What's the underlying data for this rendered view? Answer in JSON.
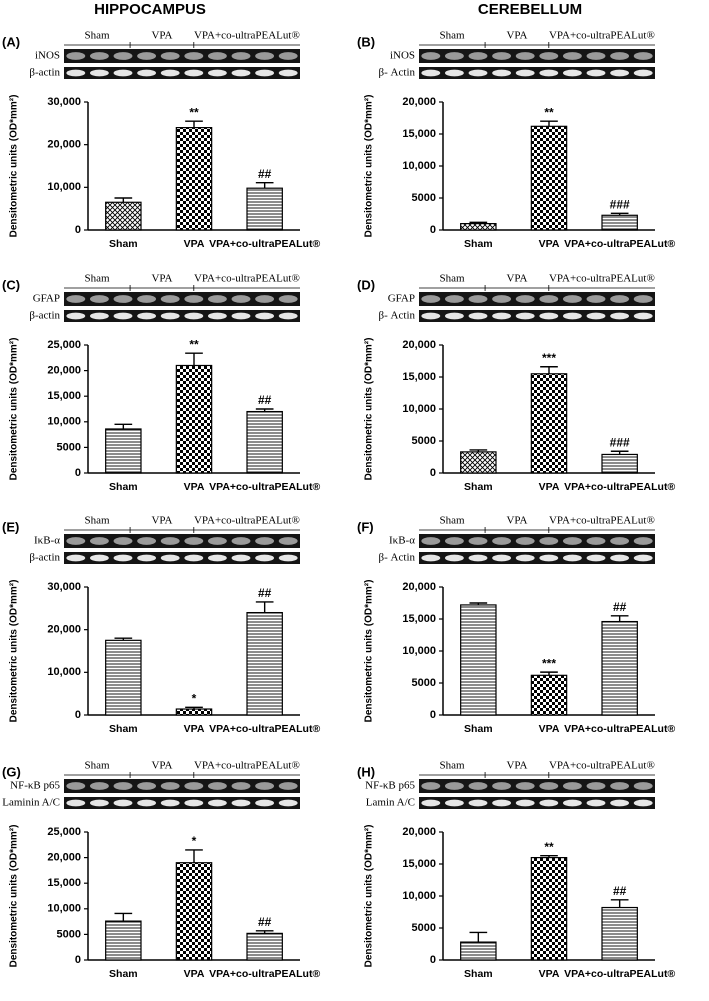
{
  "columns": [
    "HIPPOCAMPUS",
    "CEREBELLUM"
  ],
  "chart_data": [
    {
      "type": "bar",
      "panel": "(A)",
      "blot": {
        "groups": [
          "Sham",
          "VPA",
          "VPA+co-ultraPEALut®"
        ],
        "rows": [
          "iNOS",
          "β-actin"
        ]
      },
      "ylabel": "Densitometric units (OD*mm²)",
      "categories": [
        "Sham",
        "VPA",
        "VPA+co-ultraPEALut®"
      ],
      "values": [
        6500,
        24000,
        9800
      ],
      "errors": [
        1000,
        1500,
        1300
      ],
      "annotations": [
        null,
        "**",
        "##"
      ],
      "patterns": [
        "crosshatch",
        "checker",
        "hlines"
      ],
      "ylim": [
        0,
        30000
      ],
      "yticks": [
        0,
        {
          "value": 10000,
          "label": "10,000"
        },
        {
          "value": 20000,
          "label": "20,000"
        },
        {
          "value": 30000,
          "label": "30,000"
        }
      ]
    },
    {
      "type": "bar",
      "panel": "(B)",
      "blot": {
        "groups": [
          "Sham",
          "VPA",
          "VPA+co-ultraPEALut®"
        ],
        "rows": [
          "iNOS",
          "β- Actin"
        ]
      },
      "ylabel": "Densitometric units (OD*mm²)",
      "categories": [
        "Sham",
        "VPA",
        "VPA+co-ultraPEALut®"
      ],
      "values": [
        1000,
        16200,
        2300
      ],
      "errors": [
        200,
        800,
        300
      ],
      "annotations": [
        null,
        "**",
        "###"
      ],
      "patterns": [
        "crosshatch",
        "checker",
        "hlines"
      ],
      "ylim": [
        0,
        20000
      ],
      "yticks": [
        0,
        5000,
        {
          "value": 10000,
          "label": "10,000"
        },
        {
          "value": 15000,
          "label": "15,000"
        },
        {
          "value": 20000,
          "label": "20,000"
        }
      ]
    },
    {
      "type": "bar",
      "panel": "(C)",
      "blot": {
        "groups": [
          "Sham",
          "VPA",
          "VPA+co-ultraPEALut®"
        ],
        "rows": [
          "GFAP",
          "β-actin"
        ]
      },
      "ylabel": "Densitometric units (OD*mm²)",
      "categories": [
        "Sham",
        "VPA",
        "VPA+co-ultraPEALut®"
      ],
      "values": [
        8600,
        21000,
        12000
      ],
      "errors": [
        900,
        2400,
        500
      ],
      "annotations": [
        null,
        "**",
        "##"
      ],
      "patterns": [
        "hlines",
        "checker",
        "hlines"
      ],
      "ylim": [
        0,
        25000
      ],
      "yticks": [
        0,
        5000,
        {
          "value": 10000,
          "label": "10,000"
        },
        {
          "value": 15000,
          "label": "15,000"
        },
        {
          "value": 20000,
          "label": "20,000"
        },
        {
          "value": 25000,
          "label": "25,000"
        }
      ]
    },
    {
      "type": "bar",
      "panel": "(D)",
      "blot": {
        "groups": [
          "Sham",
          "VPA",
          "VPA+co-ultraPEALut®"
        ],
        "rows": [
          "GFAP",
          "β- Actin"
        ]
      },
      "ylabel": "Densitometric units (OD*mm²)",
      "categories": [
        "Sham",
        "VPA",
        "VPA+co-ultraPEALut®"
      ],
      "values": [
        3300,
        15500,
        2900
      ],
      "errors": [
        300,
        1100,
        500
      ],
      "annotations": [
        null,
        "***",
        "###"
      ],
      "patterns": [
        "crosshatch",
        "checker",
        "hlines"
      ],
      "ylim": [
        0,
        20000
      ],
      "yticks": [
        0,
        5000,
        {
          "value": 10000,
          "label": "10,000"
        },
        {
          "value": 15000,
          "label": "15,000"
        },
        {
          "value": 20000,
          "label": "20,000"
        }
      ]
    },
    {
      "type": "bar",
      "panel": "(E)",
      "blot": {
        "groups": [
          "Sham",
          "VPA",
          "VPA+co-ultraPEALut®"
        ],
        "rows": [
          "IκB-α",
          "β-actin"
        ]
      },
      "ylabel": "Densitometric units (OD*mm²)",
      "categories": [
        "Sham",
        "VPA",
        "VPA+co-ultraPEALut®"
      ],
      "values": [
        17500,
        1400,
        24000
      ],
      "errors": [
        500,
        400,
        2500
      ],
      "annotations": [
        null,
        "*",
        "##"
      ],
      "patterns": [
        "hlines",
        "checker",
        "hlines"
      ],
      "ylim": [
        0,
        30000
      ],
      "yticks": [
        0,
        {
          "value": 10000,
          "label": "10,000"
        },
        {
          "value": 20000,
          "label": "20,000"
        },
        {
          "value": 30000,
          "label": "30,000"
        }
      ]
    },
    {
      "type": "bar",
      "panel": "(F)",
      "blot": {
        "groups": [
          "Sham",
          "VPA",
          "VPA+co-ultraPEALut®"
        ],
        "rows": [
          "IκB-α",
          "β- Actin"
        ]
      },
      "ylabel": "Densitometric units (OD*mm²)",
      "categories": [
        "Sham",
        "VPA",
        "VPA+co-ultraPEALut®"
      ],
      "values": [
        17200,
        6200,
        14600
      ],
      "errors": [
        300,
        500,
        900
      ],
      "annotations": [
        null,
        "***",
        "##"
      ],
      "patterns": [
        "hlines",
        "checker",
        "hlines"
      ],
      "ylim": [
        0,
        20000
      ],
      "yticks": [
        0,
        5000,
        {
          "value": 10000,
          "label": "10,000"
        },
        {
          "value": 15000,
          "label": "15,000"
        },
        {
          "value": 20000,
          "label": "20,000"
        }
      ]
    },
    {
      "type": "bar",
      "panel": "(G)",
      "blot": {
        "groups": [
          "Sham",
          "VPA",
          "VPA+co-ultraPEALut®"
        ],
        "rows": [
          "NF-κB p65",
          "Laminin A/C"
        ]
      },
      "ylabel": "Densitometric units (OD*mm²)",
      "categories": [
        "Sham",
        "VPA",
        "VPA+co-ultraPEALut®"
      ],
      "values": [
        7600,
        19000,
        5200
      ],
      "errors": [
        1500,
        2500,
        500
      ],
      "annotations": [
        null,
        "*",
        "##"
      ],
      "patterns": [
        "hlines",
        "checker",
        "hlines"
      ],
      "ylim": [
        0,
        25000
      ],
      "yticks": [
        0,
        5000,
        {
          "value": 10000,
          "label": "10,000"
        },
        {
          "value": 15000,
          "label": "15,000"
        },
        {
          "value": 20000,
          "label": "20,000"
        },
        {
          "value": 25000,
          "label": "25,000"
        }
      ]
    },
    {
      "type": "bar",
      "panel": "(H)",
      "blot": {
        "groups": [
          "Sham",
          "VPA",
          "VPA+co-ultraPEALut®"
        ],
        "rows": [
          "NF-κB p65",
          "Lamin A/C"
        ]
      },
      "ylabel": "Densitometric units (OD*mm²)",
      "categories": [
        "Sham",
        "VPA",
        "VPA+co-ultraPEALut®"
      ],
      "values": [
        2800,
        16000,
        8200
      ],
      "errors": [
        1500,
        300,
        1200
      ],
      "annotations": [
        null,
        "**",
        "##"
      ],
      "patterns": [
        "hlines",
        "checker",
        "hlines"
      ],
      "ylim": [
        0,
        20000
      ],
      "yticks": [
        0,
        5000,
        {
          "value": 10000,
          "label": "10,000"
        },
        {
          "value": 15000,
          "label": "15,000"
        },
        {
          "value": 20000,
          "label": "20,000"
        }
      ]
    }
  ]
}
